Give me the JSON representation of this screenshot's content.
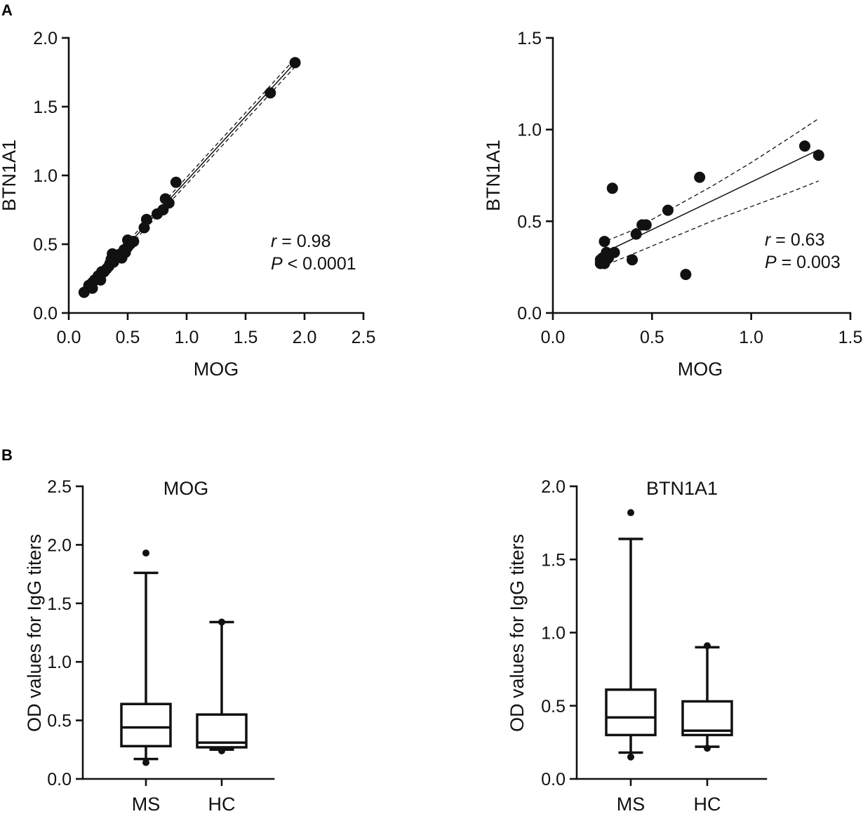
{
  "panel_labels": [
    "A",
    "B"
  ],
  "chart_data": [
    {
      "id": "scatter1",
      "type": "scatter",
      "xlabel": "MOG",
      "ylabel": "BTN1A1",
      "xlim": [
        0,
        2.5
      ],
      "ylim": [
        0,
        2.0
      ],
      "xticks": [
        "0.0",
        "0.5",
        "1.0",
        "1.5",
        "2.0",
        "2.5"
      ],
      "yticks": [
        "0.0",
        "0.5",
        "1.0",
        "1.5",
        "2.0"
      ],
      "points": [
        [
          0.13,
          0.15
        ],
        [
          0.17,
          0.2
        ],
        [
          0.2,
          0.18
        ],
        [
          0.2,
          0.22
        ],
        [
          0.22,
          0.24
        ],
        [
          0.25,
          0.27
        ],
        [
          0.27,
          0.24
        ],
        [
          0.28,
          0.3
        ],
        [
          0.3,
          0.3
        ],
        [
          0.32,
          0.32
        ],
        [
          0.34,
          0.34
        ],
        [
          0.35,
          0.36
        ],
        [
          0.36,
          0.39
        ],
        [
          0.37,
          0.43
        ],
        [
          0.38,
          0.37
        ],
        [
          0.39,
          0.4
        ],
        [
          0.4,
          0.42
        ],
        [
          0.42,
          0.41
        ],
        [
          0.44,
          0.43
        ],
        [
          0.45,
          0.4
        ],
        [
          0.47,
          0.46
        ],
        [
          0.48,
          0.44
        ],
        [
          0.5,
          0.48
        ],
        [
          0.5,
          0.53
        ],
        [
          0.52,
          0.5
        ],
        [
          0.55,
          0.52
        ],
        [
          0.64,
          0.62
        ],
        [
          0.66,
          0.68
        ],
        [
          0.75,
          0.72
        ],
        [
          0.8,
          0.75
        ],
        [
          0.82,
          0.83
        ],
        [
          0.85,
          0.8
        ],
        [
          0.91,
          0.95
        ],
        [
          1.71,
          1.6
        ],
        [
          1.92,
          1.82
        ]
      ],
      "fit": {
        "x": [
          0.12,
          1.92
        ],
        "y": [
          0.14,
          1.82
        ]
      },
      "ci_upper": {
        "x": [
          0.12,
          1.92
        ],
        "y": [
          0.16,
          1.85
        ]
      },
      "ci_lower": {
        "x": [
          0.12,
          1.92
        ],
        "y": [
          0.12,
          1.79
        ]
      },
      "stat_r_label": "r",
      "stat_r_value": " = 0.98",
      "stat_p_label": "P",
      "stat_p_value": " < 0.0001"
    },
    {
      "id": "scatter2",
      "type": "scatter",
      "xlabel": "MOG",
      "ylabel": "BTN1A1",
      "xlim": [
        0,
        1.5
      ],
      "ylim": [
        0,
        1.5
      ],
      "xticks": [
        "0.0",
        "0.5",
        "1.0",
        "1.5"
      ],
      "yticks": [
        "0.0",
        "0.5",
        "1.0",
        "1.5"
      ],
      "points": [
        [
          0.24,
          0.27
        ],
        [
          0.24,
          0.29
        ],
        [
          0.25,
          0.3
        ],
        [
          0.26,
          0.27
        ],
        [
          0.26,
          0.39
        ],
        [
          0.27,
          0.33
        ],
        [
          0.28,
          0.3
        ],
        [
          0.3,
          0.68
        ],
        [
          0.31,
          0.33
        ],
        [
          0.4,
          0.29
        ],
        [
          0.42,
          0.43
        ],
        [
          0.45,
          0.48
        ],
        [
          0.47,
          0.48
        ],
        [
          0.58,
          0.56
        ],
        [
          0.67,
          0.21
        ],
        [
          0.74,
          0.74
        ],
        [
          1.27,
          0.91
        ],
        [
          1.34,
          0.86
        ]
      ],
      "fit": {
        "x": [
          0.24,
          1.34
        ],
        "y": [
          0.32,
          0.89
        ]
      },
      "ci_upper": {
        "x": [
          0.24,
          0.4,
          0.6,
          0.8,
          1.0,
          1.2,
          1.34
        ],
        "y": [
          0.38,
          0.45,
          0.57,
          0.69,
          0.82,
          0.96,
          1.06
        ]
      },
      "ci_lower": {
        "x": [
          0.24,
          0.4,
          0.6,
          0.8,
          1.0,
          1.2,
          1.34
        ],
        "y": [
          0.25,
          0.32,
          0.41,
          0.5,
          0.58,
          0.66,
          0.72
        ]
      },
      "stat_r_label": "r",
      "stat_r_value": " = 0.63",
      "stat_p_label": "P",
      "stat_p_value": " = 0.003"
    },
    {
      "id": "box1",
      "type": "box",
      "title": "MOG",
      "ylabel": "OD values for IgG titers",
      "ylim": [
        0,
        2.5
      ],
      "yticks": [
        "0.0",
        "0.5",
        "1.0",
        "1.5",
        "2.0",
        "2.5"
      ],
      "categories": [
        "MS",
        "HC"
      ],
      "boxes": [
        {
          "name": "MS",
          "whisker_low": 0.17,
          "q1": 0.28,
          "median": 0.44,
          "q3": 0.64,
          "whisker_high": 1.76,
          "outliers": [
            1.93,
            0.14
          ]
        },
        {
          "name": "HC",
          "whisker_low": 0.25,
          "q1": 0.27,
          "median": 0.31,
          "q3": 0.55,
          "whisker_high": 1.34,
          "outliers": [
            1.34,
            0.24
          ]
        }
      ]
    },
    {
      "id": "box2",
      "type": "box",
      "title": "BTN1A1",
      "ylabel": "OD values for IgG titers",
      "ylim": [
        0,
        2.0
      ],
      "yticks": [
        "0.0",
        "0.5",
        "1.0",
        "1.5",
        "2.0"
      ],
      "categories": [
        "MS",
        "HC"
      ],
      "boxes": [
        {
          "name": "MS",
          "whisker_low": 0.18,
          "q1": 0.3,
          "median": 0.42,
          "q3": 0.61,
          "whisker_high": 1.64,
          "outliers": [
            1.82,
            0.15
          ]
        },
        {
          "name": "HC",
          "whisker_low": 0.22,
          "q1": 0.3,
          "median": 0.33,
          "q3": 0.53,
          "whisker_high": 0.9,
          "outliers": [
            0.91,
            0.21
          ]
        }
      ]
    }
  ]
}
